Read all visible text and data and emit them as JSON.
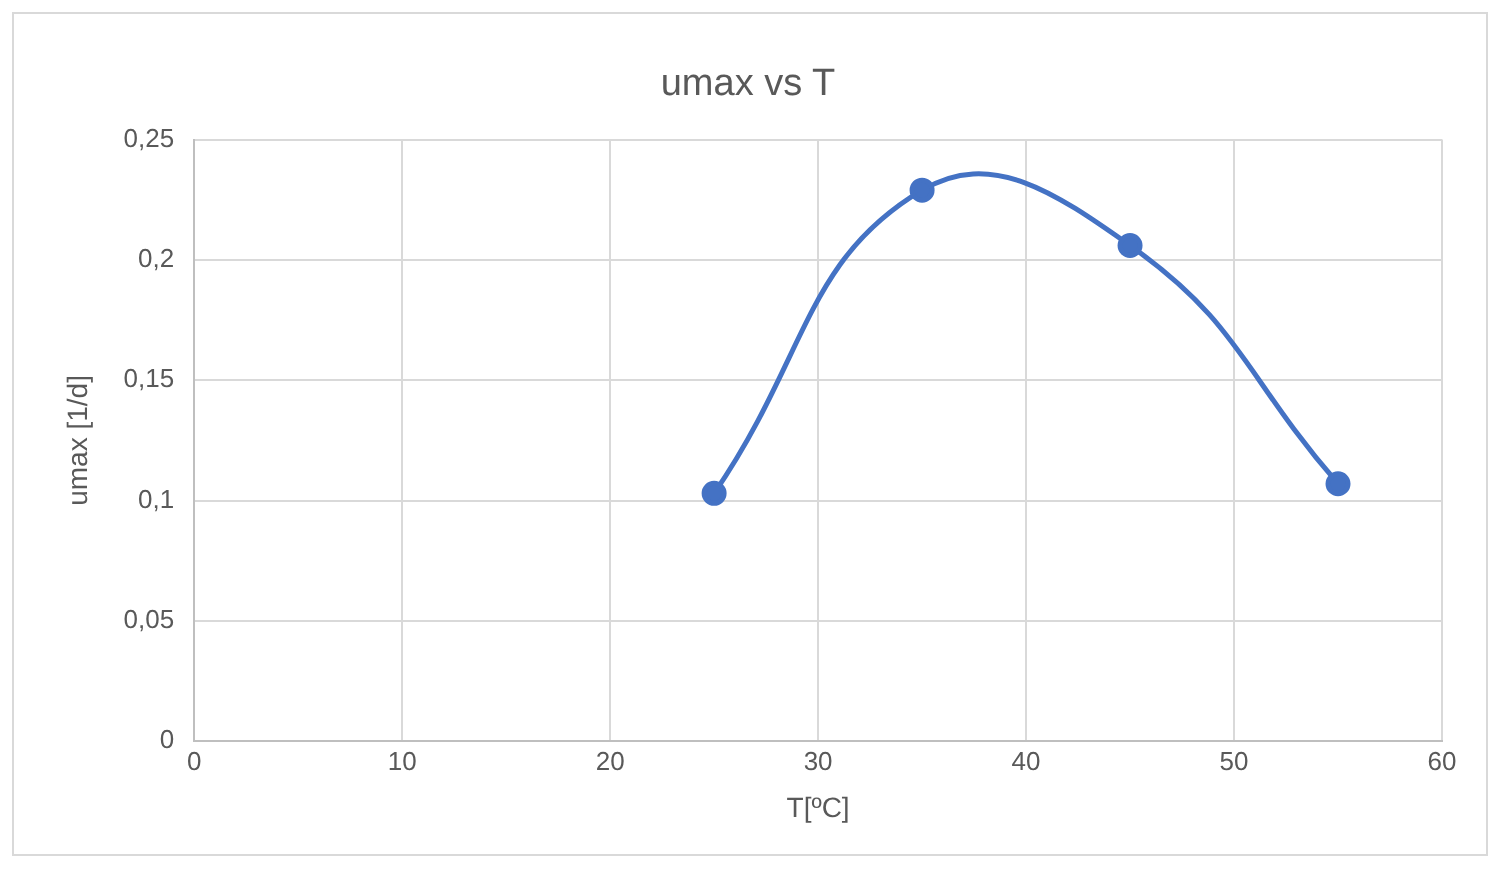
{
  "chart_data": {
    "type": "line",
    "title": "umax vs T",
    "xlabel": "T[ºC]",
    "ylabel": "umax [1/d]",
    "x": [
      25,
      35,
      45,
      55
    ],
    "series": [
      {
        "color": "#4472c4",
        "values": [
          0.103,
          0.229,
          0.206,
          0.107
        ]
      }
    ],
    "xlim": [
      0,
      60
    ],
    "xticks": [
      0,
      10,
      20,
      30,
      40,
      50,
      60
    ],
    "ylim": [
      0,
      0.25
    ],
    "yticks": [
      0,
      {
        "value": 0.05,
        "label": "0,05"
      },
      {
        "value": 0.1,
        "label": "0,1"
      },
      {
        "value": 0.15,
        "label": "0,15"
      },
      {
        "value": 0.2,
        "label": "0,2"
      },
      {
        "value": 0.25,
        "label": "0,25"
      }
    ],
    "grid": true,
    "legend": false,
    "marker": "circle",
    "line_style": "solid"
  }
}
